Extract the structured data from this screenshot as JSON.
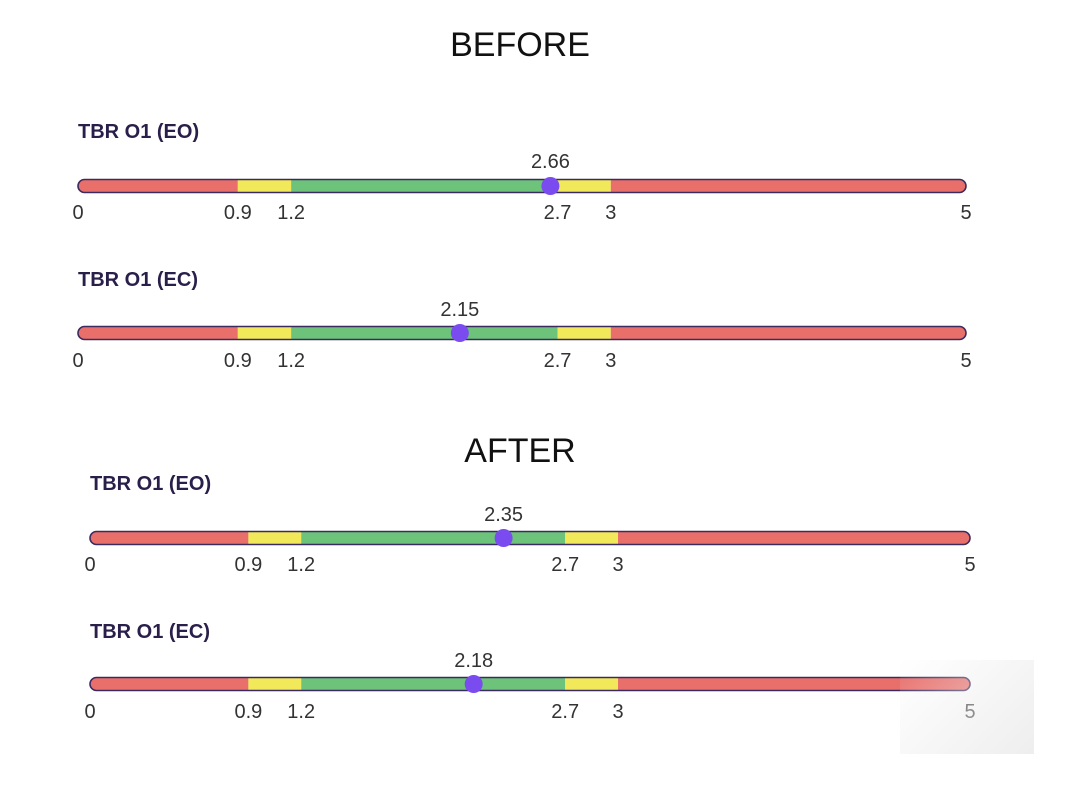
{
  "sections": {
    "before_title": "BEFORE",
    "after_title": "AFTER"
  },
  "colors": {
    "red": "#e96f6b",
    "yellow": "#f1e85a",
    "green": "#6dc37a",
    "marker": "#7a4cf0",
    "outline": "#3b2a5e"
  },
  "chart_data": [
    {
      "type": "bar",
      "section": "BEFORE",
      "title": "TBR O1 (EO)",
      "range": [
        0,
        5
      ],
      "ticks": [
        0,
        0.9,
        1.2,
        2.7,
        3,
        5
      ],
      "bands": [
        {
          "from": 0,
          "to": 0.9,
          "color": "red"
        },
        {
          "from": 0.9,
          "to": 1.2,
          "color": "yellow"
        },
        {
          "from": 1.2,
          "to": 2.7,
          "color": "green"
        },
        {
          "from": 2.7,
          "to": 3,
          "color": "yellow"
        },
        {
          "from": 3,
          "to": 5,
          "color": "red"
        }
      ],
      "value": 2.66
    },
    {
      "type": "bar",
      "section": "BEFORE",
      "title": "TBR O1 (EC)",
      "range": [
        0,
        5
      ],
      "ticks": [
        0,
        0.9,
        1.2,
        2.7,
        3,
        5
      ],
      "bands": [
        {
          "from": 0,
          "to": 0.9,
          "color": "red"
        },
        {
          "from": 0.9,
          "to": 1.2,
          "color": "yellow"
        },
        {
          "from": 1.2,
          "to": 2.7,
          "color": "green"
        },
        {
          "from": 2.7,
          "to": 3,
          "color": "yellow"
        },
        {
          "from": 3,
          "to": 5,
          "color": "red"
        }
      ],
      "value": 2.15
    },
    {
      "type": "bar",
      "section": "AFTER",
      "title": "TBR O1 (EO)",
      "range": [
        0,
        5
      ],
      "ticks": [
        0,
        0.9,
        1.2,
        2.7,
        3,
        5
      ],
      "bands": [
        {
          "from": 0,
          "to": 0.9,
          "color": "red"
        },
        {
          "from": 0.9,
          "to": 1.2,
          "color": "yellow"
        },
        {
          "from": 1.2,
          "to": 2.7,
          "color": "green"
        },
        {
          "from": 2.7,
          "to": 3,
          "color": "yellow"
        },
        {
          "from": 3,
          "to": 5,
          "color": "red"
        }
      ],
      "value": 2.35
    },
    {
      "type": "bar",
      "section": "AFTER",
      "title": "TBR O1 (EC)",
      "range": [
        0,
        5
      ],
      "ticks": [
        0,
        0.9,
        1.2,
        2.7,
        3,
        5
      ],
      "bands": [
        {
          "from": 0,
          "to": 0.9,
          "color": "red"
        },
        {
          "from": 0.9,
          "to": 1.2,
          "color": "yellow"
        },
        {
          "from": 1.2,
          "to": 2.7,
          "color": "green"
        },
        {
          "from": 2.7,
          "to": 3,
          "color": "yellow"
        },
        {
          "from": 3,
          "to": 5,
          "color": "red"
        }
      ],
      "value": 2.18
    }
  ]
}
